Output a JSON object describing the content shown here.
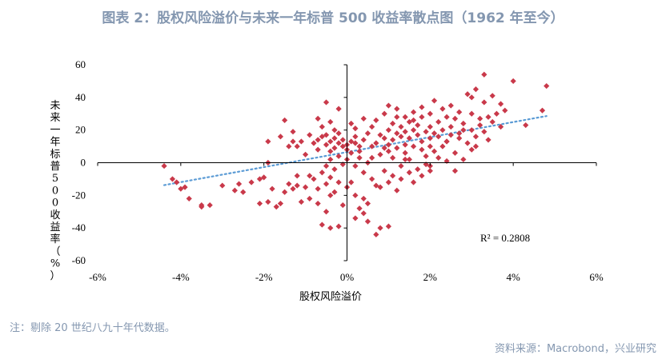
{
  "title": "图表 2：股权风险溢价与未来一年标普 500 收益率散点图（1962 年至今）",
  "note": "注：剔除 20 世纪八九十年代数据。",
  "source": "资料来源：Macrobond，兴业研究",
  "colors": {
    "title": "#8497b0",
    "points": "#c9394a",
    "trend": "#5b9bd5"
  },
  "chart_data": {
    "type": "scatter",
    "xlabel": "股权风险溢价",
    "ylabel": "未来一年标普500收益率（%）",
    "xlim": [
      -6,
      6
    ],
    "ylim": [
      -60,
      60
    ],
    "x_ticks": [
      "-6%",
      "-4%",
      "-2%",
      "0%",
      "2%",
      "4%",
      "6%"
    ],
    "y_ticks": [
      "60",
      "40",
      "20",
      "0",
      "-20",
      "-40",
      "-60"
    ],
    "trendline": {
      "style": "dotted",
      "slope": 4.6,
      "intercept": 6.5
    },
    "annotation": "R² = 0.2808",
    "series": [
      {
        "points": [
          [
            -4.4,
            -2
          ],
          [
            -4.2,
            -10
          ],
          [
            -4.1,
            -12
          ],
          [
            -4.0,
            -16
          ],
          [
            -3.9,
            -15
          ],
          [
            -3.8,
            -22
          ],
          [
            -3.5,
            -26
          ],
          [
            -3.5,
            -27
          ],
          [
            -3.3,
            -26
          ],
          [
            -3.0,
            -14
          ],
          [
            -2.7,
            -17
          ],
          [
            -2.6,
            -13
          ],
          [
            -2.5,
            -18
          ],
          [
            -2.3,
            -12
          ],
          [
            -2.1,
            -25
          ],
          [
            -2.1,
            -10
          ],
          [
            -2.0,
            -9
          ],
          [
            -1.9,
            -24
          ],
          [
            -1.8,
            -16
          ],
          [
            -1.7,
            -27
          ],
          [
            -1.6,
            -25
          ],
          [
            -1.5,
            -18
          ],
          [
            -1.4,
            -13
          ],
          [
            -1.3,
            -16
          ],
          [
            -1.2,
            -14
          ],
          [
            -1.9,
            0
          ],
          [
            -1.9,
            13
          ],
          [
            -1.6,
            16
          ],
          [
            -1.5,
            26
          ],
          [
            -1.4,
            10
          ],
          [
            -1.3,
            13
          ],
          [
            -1.2,
            10
          ],
          [
            -1.1,
            13
          ],
          [
            -1.0,
            5
          ],
          [
            -1.2,
            -8
          ],
          [
            -1.0,
            -15
          ],
          [
            -0.9,
            -8
          ],
          [
            -0.8,
            -10
          ],
          [
            -0.7,
            -16
          ],
          [
            -0.6,
            -6
          ],
          [
            -0.5,
            -13
          ],
          [
            -0.4,
            -9
          ],
          [
            -0.3,
            -4
          ],
          [
            -1.1,
            -24
          ],
          [
            -0.9,
            -22
          ],
          [
            -0.7,
            -25
          ],
          [
            -0.6,
            -38
          ],
          [
            -0.5,
            -30
          ],
          [
            -0.4,
            -20
          ],
          [
            -0.3,
            -18
          ],
          [
            -0.2,
            -12
          ],
          [
            -0.1,
            -26
          ],
          [
            -0.8,
            12
          ],
          [
            -0.7,
            14
          ],
          [
            -0.7,
            8
          ],
          [
            -0.6,
            16
          ],
          [
            -0.5,
            11
          ],
          [
            -0.5,
            17
          ],
          [
            -0.4,
            13
          ],
          [
            -0.4,
            7
          ],
          [
            -0.3,
            15
          ],
          [
            -0.3,
            9
          ],
          [
            -0.2,
            12
          ],
          [
            -0.2,
            18
          ],
          [
            -0.1,
            10
          ],
          [
            -0.1,
            14
          ],
          [
            0.0,
            11
          ],
          [
            0.0,
            8
          ],
          [
            0.1,
            13
          ],
          [
            0.1,
            6
          ],
          [
            0.2,
            12
          ],
          [
            0.2,
            16
          ],
          [
            0.3,
            10
          ],
          [
            0.4,
            14
          ],
          [
            0.3,
            7
          ],
          [
            -0.6,
            22
          ],
          [
            -0.4,
            25
          ],
          [
            -0.3,
            20
          ],
          [
            -0.5,
            37
          ],
          [
            -0.2,
            33
          ],
          [
            0.1,
            24
          ],
          [
            0.4,
            27
          ],
          [
            0.2,
            21
          ],
          [
            -0.4,
            2
          ],
          [
            -0.2,
            4
          ],
          [
            0.0,
            2
          ],
          [
            0.2,
            -2
          ],
          [
            0.4,
            -6
          ],
          [
            0.5,
            0
          ],
          [
            0.6,
            3
          ],
          [
            0.0,
            -15
          ],
          [
            0.1,
            -12
          ],
          [
            0.2,
            -20
          ],
          [
            0.3,
            -28
          ],
          [
            0.4,
            -22
          ],
          [
            0.5,
            -25
          ],
          [
            0.6,
            -10
          ],
          [
            0.7,
            -14
          ],
          [
            0.8,
            -15
          ],
          [
            0.4,
            -31
          ],
          [
            0.5,
            -36
          ],
          [
            0.8,
            -40
          ],
          [
            0.2,
            -34
          ],
          [
            -0.4,
            -40
          ],
          [
            -0.2,
            -39
          ],
          [
            0.7,
            -44
          ],
          [
            1.0,
            -39
          ],
          [
            0.5,
            18
          ],
          [
            0.6,
            22
          ],
          [
            0.7,
            12
          ],
          [
            0.8,
            17
          ],
          [
            0.9,
            15
          ],
          [
            1.0,
            20
          ],
          [
            1.0,
            11
          ],
          [
            1.1,
            24
          ],
          [
            1.1,
            14
          ],
          [
            1.2,
            18
          ],
          [
            1.3,
            16
          ],
          [
            1.3,
            22
          ],
          [
            1.4,
            19
          ],
          [
            1.4,
            11
          ],
          [
            1.5,
            25
          ],
          [
            1.5,
            15
          ],
          [
            1.6,
            20
          ],
          [
            1.7,
            17
          ],
          [
            1.7,
            23
          ],
          [
            1.8,
            13
          ],
          [
            1.8,
            28
          ],
          [
            1.9,
            19
          ],
          [
            2.0,
            22
          ],
          [
            2.0,
            15
          ],
          [
            2.1,
            18
          ],
          [
            2.2,
            25
          ],
          [
            2.2,
            16
          ],
          [
            2.3,
            20
          ],
          [
            2.4,
            13
          ],
          [
            2.5,
            22
          ],
          [
            2.5,
            17
          ],
          [
            2.6,
            27
          ],
          [
            2.7,
            18
          ],
          [
            2.8,
            24
          ],
          [
            2.9,
            12
          ],
          [
            3.0,
            20
          ],
          [
            3.1,
            16
          ],
          [
            3.2,
            23
          ],
          [
            3.3,
            19
          ],
          [
            3.4,
            14
          ],
          [
            0.9,
            30
          ],
          [
            1.0,
            35
          ],
          [
            1.2,
            33
          ],
          [
            1.4,
            28
          ],
          [
            1.6,
            31
          ],
          [
            1.8,
            34
          ],
          [
            2.0,
            30
          ],
          [
            2.1,
            38
          ],
          [
            2.3,
            33
          ],
          [
            2.5,
            35
          ],
          [
            2.7,
            31
          ],
          [
            2.9,
            42
          ],
          [
            3.0,
            40
          ],
          [
            3.1,
            45
          ],
          [
            3.3,
            37
          ],
          [
            3.5,
            41
          ],
          [
            3.7,
            36
          ],
          [
            3.3,
            54
          ],
          [
            4.0,
            50
          ],
          [
            4.8,
            47
          ],
          [
            3.6,
            30
          ],
          [
            3.8,
            32
          ],
          [
            3.5,
            25
          ],
          [
            3.7,
            22
          ],
          [
            4.3,
            23
          ],
          [
            4.7,
            32
          ],
          [
            3.4,
            28
          ],
          [
            3.0,
            30
          ],
          [
            3.2,
            27
          ],
          [
            0.8,
            5
          ],
          [
            1.0,
            7
          ],
          [
            1.1,
            3
          ],
          [
            1.2,
            9
          ],
          [
            1.3,
            -2
          ],
          [
            1.4,
            6
          ],
          [
            1.5,
            2
          ],
          [
            1.6,
            10
          ],
          [
            1.7,
            -4
          ],
          [
            1.8,
            8
          ],
          [
            1.9,
            4
          ],
          [
            2.0,
            -2
          ],
          [
            2.1,
            7
          ],
          [
            2.2,
            3
          ],
          [
            2.3,
            10
          ],
          [
            2.4,
            1
          ],
          [
            2.6,
            6
          ],
          [
            2.8,
            2
          ],
          [
            3.0,
            8
          ],
          [
            2.6,
            -5
          ],
          [
            0.9,
            -5
          ],
          [
            1.0,
            -12
          ],
          [
            1.1,
            -8
          ],
          [
            1.2,
            -17
          ],
          [
            1.3,
            -10
          ],
          [
            1.5,
            -6
          ],
          [
            1.6,
            -12
          ],
          [
            1.8,
            -8
          ],
          [
            2.0,
            -5
          ],
          [
            -0.5,
            -2
          ],
          [
            -0.1,
            -1
          ],
          [
            0.3,
            3
          ],
          [
            0.6,
            10
          ],
          [
            0.9,
            9
          ],
          [
            1.4,
            2
          ],
          [
            2.0,
            10
          ],
          [
            2.4,
            13
          ],
          [
            2.7,
            15
          ],
          [
            1.9,
            -1
          ],
          [
            1.2,
            28
          ],
          [
            1.6,
            26
          ],
          [
            2.4,
            28
          ],
          [
            2.8,
            20
          ],
          [
            3.1,
            10
          ],
          [
            0.7,
            26
          ],
          [
            -0.7,
            27
          ],
          [
            -0.9,
            17
          ],
          [
            -1.3,
            19
          ]
        ]
      }
    ]
  }
}
